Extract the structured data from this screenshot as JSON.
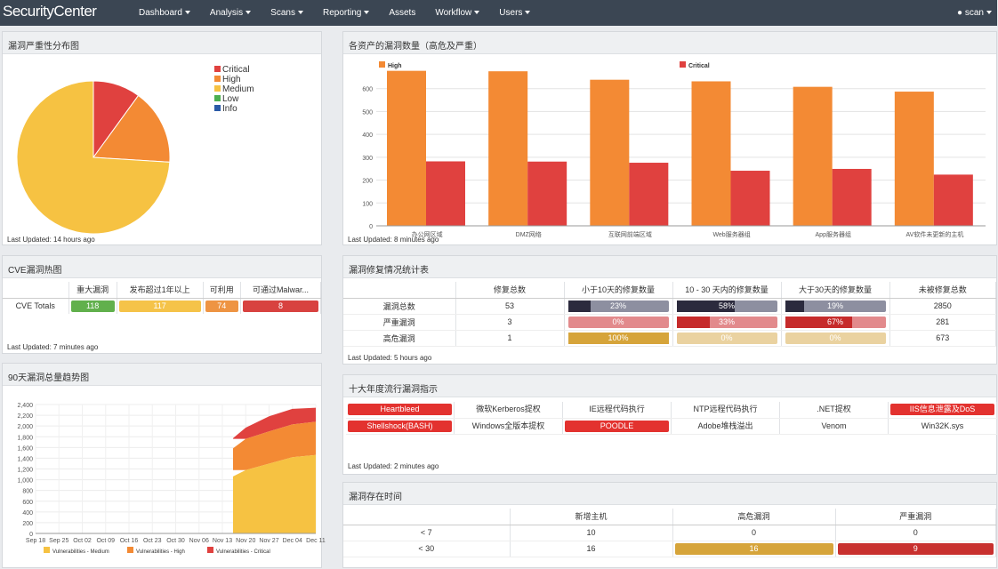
{
  "nav": {
    "logo": "SecurityCenter",
    "menu": [
      {
        "label": "Dashboard",
        "dropdown": true
      },
      {
        "label": "Analysis",
        "dropdown": true
      },
      {
        "label": "Scans",
        "dropdown": true
      },
      {
        "label": "Reporting",
        "dropdown": true
      },
      {
        "label": "Assets",
        "dropdown": false
      },
      {
        "label": "Workflow",
        "dropdown": true
      },
      {
        "label": "Users",
        "dropdown": true
      }
    ],
    "user": "scan",
    "user_icon": "user-icon"
  },
  "colors": {
    "critical": "#e0413f",
    "high": "#f38a34",
    "medium": "#f6c242",
    "low": "#4caf50",
    "info": "#2a5aa7",
    "green": "#61b04c",
    "yellow": "#f5c349",
    "orange": "#ee9443",
    "red": "#d84240",
    "gold": "#d6a43a"
  },
  "severity_panel": {
    "title": "漏洞严重性分布图",
    "legend": [
      "Critical",
      "High",
      "Medium",
      "Low",
      "Info"
    ],
    "updated": "Last Updated: 14 hours ago",
    "chart_data": {
      "type": "pie",
      "labels": [
        "Critical",
        "High",
        "Medium",
        "Low",
        "Info"
      ],
      "values": [
        10,
        16,
        74,
        0,
        0
      ]
    }
  },
  "asset_panel": {
    "title": "各资产的漏洞数量（高危及严重）",
    "updated": "Last Updated: 8 minutes ago",
    "chart_data": {
      "type": "bar",
      "categories": [
        "办公网区域",
        "DMZ网络",
        "互联网前端区域",
        "Web服务器组",
        "App服务器组",
        "AV软件未更新的主机"
      ],
      "series": [
        {
          "name": "High",
          "values": [
            678,
            676,
            639,
            632,
            608,
            587
          ]
        },
        {
          "name": "Critical",
          "values": [
            282,
            281,
            276,
            241,
            249,
            224
          ]
        }
      ],
      "yticks": [
        0,
        100,
        200,
        300,
        400,
        500,
        600
      ],
      "ylim": [
        0,
        700
      ]
    }
  },
  "cve_panel": {
    "title": "CVE漏洞热图",
    "headers": [
      "重大漏洞",
      "发布超过1年以上",
      "可利用",
      "可通过Malwar..."
    ],
    "row_label": "CVE Totals",
    "values": [
      "118",
      "117",
      "74",
      "8"
    ],
    "updated": "Last Updated: 7 minutes ago"
  },
  "remediation_panel": {
    "title": "漏洞修复情况统计表",
    "headers": [
      "修复总数",
      "小于10天的修复数量",
      "10 - 30 天内的修复数量",
      "大于30天的修复数量",
      "未被修复总数"
    ],
    "rows": [
      {
        "label": "漏洞总数",
        "total": "53",
        "lt10": "23%",
        "lt10_pct": 23,
        "mid": "58%",
        "mid_pct": 58,
        "gt30": "19%",
        "gt30_pct": 19,
        "unfixed": "2850"
      },
      {
        "label": "严重漏洞",
        "total": "3",
        "lt10": "0%",
        "lt10_pct": 0,
        "mid": "33%",
        "mid_pct": 33,
        "gt30": "67%",
        "gt30_pct": 67,
        "unfixed": "281"
      },
      {
        "label": "高危漏洞",
        "total": "1",
        "lt10": "100%",
        "lt10_pct": 100,
        "mid": "0%",
        "mid_pct": 0,
        "gt30": "0%",
        "gt30_pct": 0,
        "unfixed": "673"
      }
    ],
    "updated": "Last Updated: 5 hours ago"
  },
  "top10_panel": {
    "title": "十大年度流行漏洞指示",
    "row1": [
      {
        "t": "Heartbleed",
        "hl": true
      },
      {
        "t": "微软Kerberos提权",
        "hl": false
      },
      {
        "t": "IE远程代码执行",
        "hl": false
      },
      {
        "t": "NTP远程代码执行",
        "hl": false
      },
      {
        "t": ".NET提权",
        "hl": false
      },
      {
        "t": "IIS信息泄露及DoS",
        "hl": true
      }
    ],
    "row2": [
      {
        "t": "Shellshock(BASH)",
        "hl": true
      },
      {
        "t": "Windows全版本提权",
        "hl": false
      },
      {
        "t": "POODLE",
        "hl": true
      },
      {
        "t": "Adobe堆栈溢出",
        "hl": false
      },
      {
        "t": "Venom",
        "hl": false
      },
      {
        "t": "Win32K.sys",
        "hl": false
      }
    ],
    "updated": "Last Updated: 2 minutes ago"
  },
  "trend_panel": {
    "title": "90天漏洞总量趋势图",
    "chart_data": {
      "type": "area",
      "x": [
        "Sep 18",
        "Sep 25",
        "Oct 02",
        "Oct 09",
        "Oct 16",
        "Oct 23",
        "Oct 30",
        "Nov 06",
        "Nov 13",
        "Nov 20",
        "Nov 27",
        "Dec 04",
        "Dec 11"
      ],
      "yticks": [
        0,
        200,
        400,
        600,
        800,
        1000,
        1200,
        1400,
        1600,
        1800,
        2000,
        2200,
        2400
      ],
      "ylim": [
        0,
        2400
      ],
      "series_legend": [
        "Vulnerabilities - Medium",
        "Vulnerabilities - High",
        "Vulnerabilities - Critical"
      ],
      "stack_start": "Nov 13",
      "medium": [
        0,
        0,
        0,
        0,
        0,
        0,
        0,
        0,
        0,
        1180,
        1300,
        1420,
        1460
      ],
      "high_top": [
        0,
        0,
        0,
        0,
        0,
        0,
        0,
        0,
        0,
        1760,
        1900,
        2030,
        2080
      ],
      "critical_top": [
        0,
        0,
        0,
        0,
        0,
        0,
        0,
        0,
        0,
        1970,
        2180,
        2320,
        2340
      ]
    }
  },
  "age_panel": {
    "title": "漏洞存在时间",
    "headers": [
      "新增主机",
      "高危漏洞",
      "严重漏洞"
    ],
    "rows": [
      {
        "label": "< 7",
        "new": "10",
        "high": "0",
        "crit": "0"
      },
      {
        "label": "< 30",
        "new": "16",
        "high": "16",
        "crit": "9"
      }
    ]
  }
}
